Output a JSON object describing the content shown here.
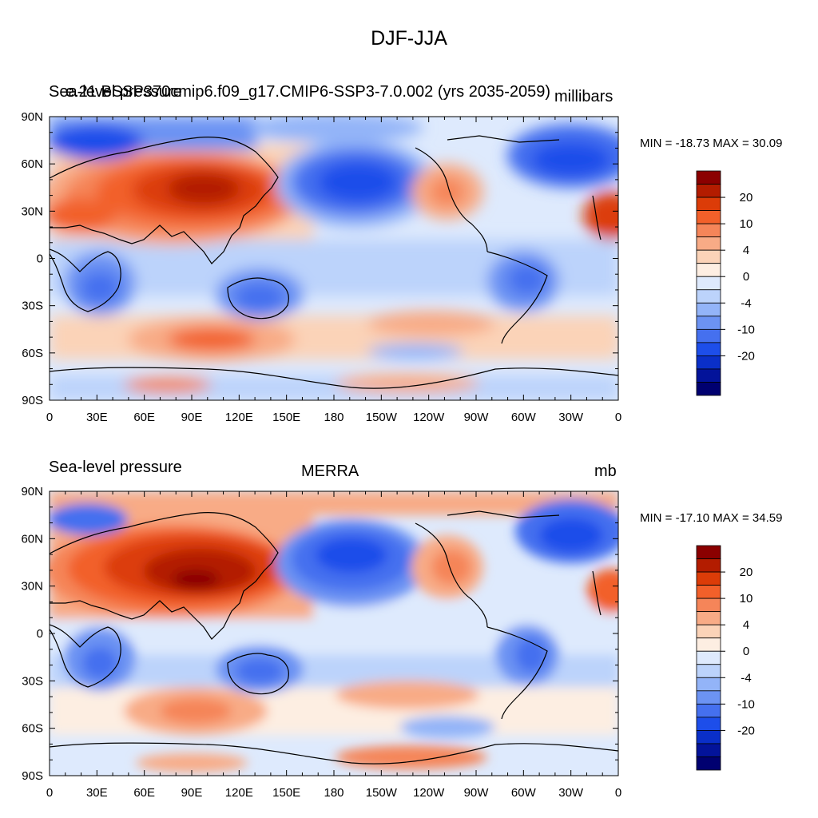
{
  "title": "DJF-JJA",
  "colorbar_levels": [
    "20",
    "10",
    "4",
    "0",
    "-4",
    "-10",
    "-20"
  ],
  "colorbar_colors": [
    "#8b0000",
    "#b31c00",
    "#dc3c08",
    "#f2602a",
    "#f58559",
    "#f8ab86",
    "#fbd3b8",
    "#fdeee2",
    "#deeafd",
    "#bcd3fb",
    "#93b4f8",
    "#6c93f3",
    "#4570ef",
    "#1d4eea",
    "#0a2fc8",
    "#03139a",
    "#000070"
  ],
  "chart_data": [
    {
      "type": "heatmap",
      "title": "Sea-level pressure",
      "overlapping_text": "e.21.BSSP370cmip6.f09_g17.CMIP6-SSP3-7.0.002 (yrs 2035-2059)",
      "units": "millibars",
      "min_max": "MIN = -18.73 MAX =  30.09",
      "x_ticks": [
        "0",
        "30E",
        "60E",
        "90E",
        "120E",
        "150E",
        "180",
        "150W",
        "120W",
        "90W",
        "60W",
        "30W",
        "0"
      ],
      "y_ticks": [
        "90N",
        "60N",
        "30N",
        "0",
        "30S",
        "60S",
        "90S"
      ],
      "colorbar_labels": [
        "20",
        "10",
        "4",
        "0",
        "-4",
        "-10",
        "-20"
      ],
      "min": -18.73,
      "max": 30.09
    },
    {
      "type": "heatmap",
      "title": "Sea-level pressure",
      "center_title": "MERRA",
      "units": "mb",
      "min_max": "MIN = -17.10 MAX =  34.59",
      "x_ticks": [
        "0",
        "30E",
        "60E",
        "90E",
        "120E",
        "150E",
        "180",
        "150W",
        "120W",
        "90W",
        "60W",
        "30W",
        "0"
      ],
      "y_ticks": [
        "90N",
        "60N",
        "30N",
        "0",
        "30S",
        "60S",
        "90S"
      ],
      "colorbar_labels": [
        "20",
        "10",
        "4",
        "0",
        "-4",
        "-10",
        "-20"
      ],
      "min": -17.1,
      "max": 34.59
    }
  ]
}
